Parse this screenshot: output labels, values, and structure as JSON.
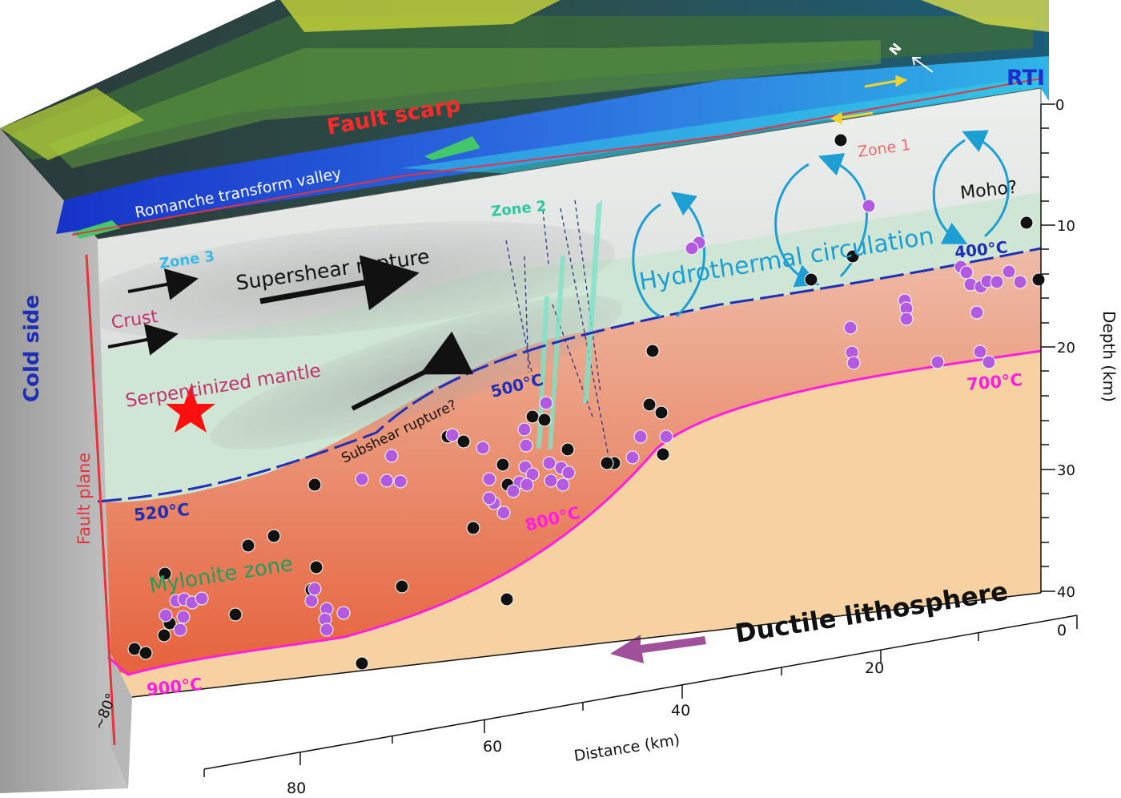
{
  "top_surface": {
    "label_fault_scarp": "Fault scarp",
    "label_valley": "Romanche transform valley",
    "label_north": "N",
    "label_rti": "RTI",
    "zone1": "Zone 1"
  },
  "front_face": {
    "zone2": "Zone 2",
    "zone3": "Zone 3",
    "supershear": "Supershear rupture",
    "subshear": "Subshear rupture?",
    "crust": "Crust",
    "serp_mantle": "Serpentinized mantle",
    "mylonite": "Mylonite zone",
    "hydro": "Hydrothermal circulation",
    "moho": "Moho?",
    "ductile": "Ductile lithosphere",
    "iso_400": "400°C",
    "iso_500": "500°C",
    "iso_520": "520°C",
    "iso_700": "700°C",
    "iso_800": "800°C",
    "iso_900": "900°C"
  },
  "side_face": {
    "cold_side": "Cold side",
    "fault_plane": "Fault plane",
    "dip": "~80°"
  },
  "axes": {
    "depth_label": "Depth (km)",
    "depth_ticks": [
      "0",
      "10",
      "20",
      "30",
      "40"
    ],
    "distance_label": "Distance (km)",
    "distance_ticks": [
      "80",
      "60",
      "40",
      "20",
      "0"
    ]
  },
  "colors": {
    "crust": "#e8e8e8",
    "serpentinized": "#cfe6d4",
    "mylonite": "#e4684a",
    "ductile": "#f6d2a2",
    "isotherm_blue": "#1f2fb8",
    "isotherm_magenta": "#ff1fe0",
    "fault_red": "#e8323c",
    "hydro_arrows": "#1e9fd4",
    "quake_purple": "#b25ae0",
    "quake_black": "#111111"
  }
}
